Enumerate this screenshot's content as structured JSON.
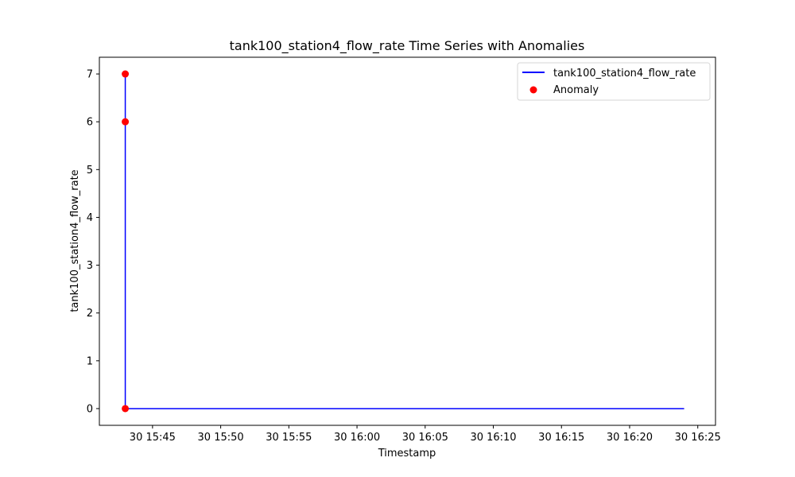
{
  "chart_data": {
    "type": "line",
    "title": "tank100_station4_flow_rate Time Series with Anomalies",
    "xlabel": "Timestamp",
    "ylabel": "tank100_station4_flow_rate",
    "xlim_minutes": [
      -1.9,
      43.3
    ],
    "ylim": [
      -0.35,
      7.35
    ],
    "x_ticks": [
      {
        "label": "30 15:45",
        "minutes": 2.0
      },
      {
        "label": "30 15:50",
        "minutes": 7.0
      },
      {
        "label": "30 15:55",
        "minutes": 12.0
      },
      {
        "label": "30 16:00",
        "minutes": 17.0
      },
      {
        "label": "30 16:05",
        "minutes": 22.0
      },
      {
        "label": "30 16:10",
        "minutes": 27.0
      },
      {
        "label": "30 16:15",
        "minutes": 32.0
      },
      {
        "label": "30 16:20",
        "minutes": 37.0
      },
      {
        "label": "30 16:25",
        "minutes": 42.0
      }
    ],
    "y_ticks": [
      0,
      1,
      2,
      3,
      4,
      5,
      6,
      7
    ],
    "x_origin": "30 15:43",
    "series": [
      {
        "name": "tank100_station4_flow_rate",
        "color": "#0000ff",
        "x_minutes": [
          0.0,
          0.0,
          0.0,
          0.1,
          41.0
        ],
        "values": [
          7,
          6,
          0,
          0,
          0
        ]
      }
    ],
    "anomalies": {
      "name": "Anomaly",
      "color": "#ff0000",
      "x_minutes": [
        0.0,
        0.0,
        0.0
      ],
      "values": [
        7,
        6,
        0
      ]
    },
    "legend_position": "top-right"
  }
}
